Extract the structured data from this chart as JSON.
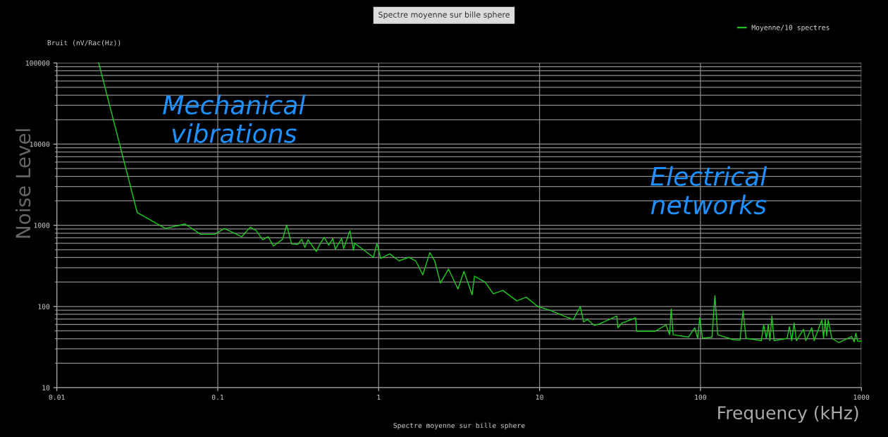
{
  "chart_data": {
    "type": "line",
    "title": "Spectre moyenne sur bille sphere",
    "xlabel": "Spectre moyenne sur bille sphere",
    "ylabel": "Bruit (nV/Rac(Hz))",
    "annotations": [
      "Mechanical vibrations",
      "Electrical networks",
      "Noise Level",
      "Frequency (kHz)"
    ],
    "log": "xy",
    "grid": true,
    "legend": "top right",
    "marker": "none",
    "line_style": "solid",
    "xlim": [
      0.01,
      1000
    ],
    "xticks": [
      0.01,
      0.1,
      1,
      10,
      100,
      1000
    ],
    "ylim": [
      10,
      100000
    ],
    "yticks": [
      10,
      100,
      1000,
      10000,
      100000
    ],
    "series": [
      {
        "name": "Moyenne/10 spectres",
        "color": "#1fcc1f",
        "x": [
          0.0182,
          0.0316,
          0.0473,
          0.0626,
          0.0783,
          0.0959,
          0.11,
          0.141,
          0.159,
          0.173,
          0.19,
          0.206,
          0.222,
          0.253,
          0.268,
          0.288,
          0.314,
          0.333,
          0.348,
          0.364,
          0.41,
          0.428,
          0.458,
          0.49,
          0.519,
          0.538,
          0.589,
          0.606,
          0.663,
          0.697,
          0.709,
          0.928,
          0.976,
          1.03,
          1.17,
          1.34,
          1.54,
          1.7,
          1.88,
          2.08,
          2.23,
          2.42,
          2.72,
          3.11,
          3.39,
          3.81,
          3.94,
          4.58,
          5.16,
          5.9,
          7.22,
          8.27,
          9.77,
          11.6,
          14.2,
          16.2,
          17.9,
          18.8,
          19.8,
          21.9,
          23.4,
          30.2,
          30.7,
          32.5,
          39.5,
          40.1,
          52.5,
          61.1,
          64.3,
          65.8,
          67.6,
          84.1,
          92.1,
          96.2,
          98.9,
          103,
          118,
          123,
          128,
          159,
          176,
          184,
          192,
          239,
          247,
          257,
          264,
          270,
          278,
          287,
          346,
          357,
          369,
          382,
          395,
          437,
          452,
          492,
          509,
          568,
          582,
          596,
          608,
          622,
          655,
          724,
          871,
          902,
          925,
          948,
          1000
        ],
        "values": [
          100000,
          1430,
          914,
          1037,
          774,
          774,
          914,
          723,
          946,
          866,
          664,
          723,
          555,
          673,
          1010,
          589,
          581,
          673,
          533,
          664,
          476,
          569,
          709,
          569,
          687,
          509,
          687,
          515,
          856,
          492,
          601,
          403,
          601,
          390,
          445,
          365,
          403,
          365,
          245,
          461,
          365,
          194,
          289,
          164,
          270,
          139,
          236,
          200,
          143,
          158,
          117,
          130,
          99.5,
          90,
          76.3,
          69,
          99.5,
          64.5,
          69,
          58.4,
          60.4,
          76.3,
          54.6,
          62.5,
          72.3,
          49.5,
          49.5,
          59.2,
          44.8,
          93.2,
          44.8,
          41.9,
          54.6,
          40.5,
          72.3,
          40.5,
          41.9,
          136,
          44.8,
          39.1,
          38.4,
          88.3,
          40.5,
          37.9,
          59.2,
          40.5,
          60.4,
          37.9,
          76.3,
          37.9,
          40.5,
          56.5,
          37.9,
          62.5,
          37.9,
          52.2,
          37.9,
          54.6,
          37.9,
          68.1,
          40.5,
          69.9,
          43.3,
          68.1,
          40.5,
          35.9,
          42.7,
          36.6,
          46.9,
          37.4,
          37.4
        ]
      }
    ]
  }
}
